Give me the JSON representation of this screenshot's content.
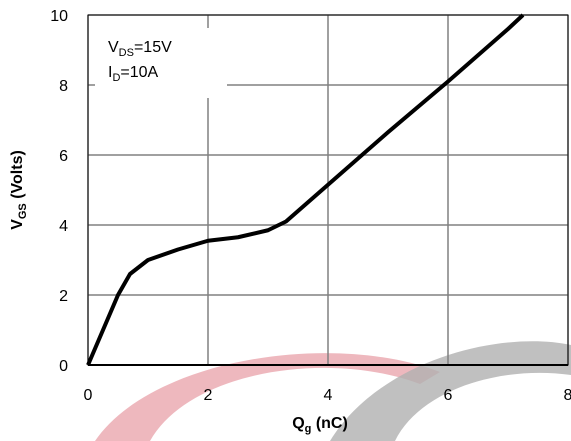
{
  "chart_data": {
    "type": "line",
    "annotation": [
      {
        "main": "V",
        "sub": "DS",
        "rest": "=15V"
      },
      {
        "main": "I",
        "sub": "D",
        "rest": "=10A"
      }
    ],
    "x_label": {
      "main": "Q",
      "sub": "g",
      "rest": " (nC)"
    },
    "y_label": {
      "main": "V",
      "sub": "GS",
      "rest": " (Volts)"
    },
    "x": [
      0,
      0.25,
      0.5,
      0.7,
      1,
      1.5,
      2,
      2.5,
      3,
      3.3,
      4,
      5,
      6,
      7,
      7.25
    ],
    "series": [
      {
        "color": "#000000",
        "values": [
          0,
          1,
          2,
          2.6,
          3,
          3.3,
          3.55,
          3.65,
          3.85,
          4.1,
          5.15,
          6.65,
          8.1,
          9.6,
          10
        ]
      }
    ],
    "xlim": [
      0,
      8
    ],
    "ylim": [
      0,
      10
    ],
    "xticks": [
      0,
      2,
      4,
      6,
      8
    ],
    "yticks": [
      0,
      2,
      4,
      6,
      8,
      10
    ],
    "grid": true
  }
}
